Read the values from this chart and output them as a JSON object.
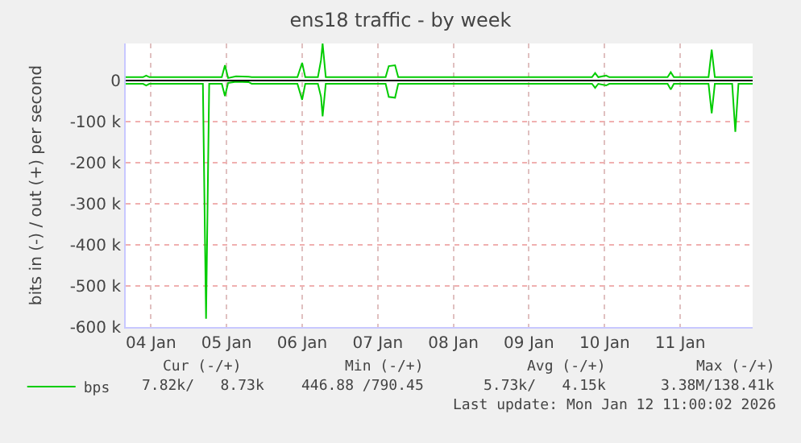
{
  "chart_data": {
    "type": "line",
    "title": "ens18 traffic - by week",
    "ylabel": "bits in (-) / out (+) per second",
    "x": [
      "2026-01-04T04:00",
      "2026-01-04T09:30",
      "2026-01-04T10:30",
      "2026-01-04T11:30",
      "2026-01-05T04:30",
      "2026-01-05T05:30",
      "2026-01-05T06:30",
      "2026-01-05T10:30",
      "2026-01-05T11:30",
      "2026-01-05T12:30",
      "2026-01-05T15:00",
      "2026-01-05T19:00",
      "2026-01-05T20:00",
      "2026-01-06T10:30",
      "2026-01-06T12:00",
      "2026-01-06T13:00",
      "2026-01-06T17:00",
      "2026-01-06T18:00",
      "2026-01-06T18:30",
      "2026-01-06T19:30",
      "2026-01-07T14:30",
      "2026-01-07T15:30",
      "2026-01-07T17:30",
      "2026-01-07T18:30",
      "2026-01-08T08:00",
      "2026-01-09T12:00",
      "2026-01-10T08:00",
      "2026-01-10T09:00",
      "2026-01-10T10:00",
      "2026-01-10T12:30",
      "2026-01-10T13:30",
      "2026-01-11T08:00",
      "2026-01-11T09:00",
      "2026-01-11T10:00",
      "2026-01-11T21:00",
      "2026-01-11T22:00",
      "2026-01-11T23:00",
      "2026-01-12T04:30",
      "2026-01-12T05:30",
      "2026-01-12T06:30",
      "2026-01-12T11:00"
    ],
    "series": [
      {
        "name": "bps",
        "color": "#00cc00",
        "values": [
          8000,
          8000,
          12000,
          8000,
          8000,
          8000,
          8000,
          8000,
          37000,
          6000,
          10000,
          9000,
          8000,
          8000,
          43000,
          8000,
          8000,
          50000,
          90000,
          8000,
          8000,
          35000,
          37000,
          8000,
          8000,
          8000,
          8000,
          18000,
          8000,
          12000,
          8000,
          8000,
          20000,
          8000,
          8000,
          75000,
          8000,
          8000,
          8000,
          8000,
          8000
        ]
      },
      {
        "color": "#00cc00",
        "values": [
          -8000,
          -8000,
          -12000,
          -8000,
          -8000,
          -580000,
          -8000,
          -8000,
          -38000,
          -6000,
          -3000,
          -4000,
          -8000,
          -8000,
          -47000,
          -8000,
          -8000,
          -40000,
          -87000,
          -8000,
          -8000,
          -40000,
          -42000,
          -8000,
          -8000,
          -8000,
          -8000,
          -18000,
          -8000,
          -12000,
          -8000,
          -8000,
          -22000,
          -8000,
          -8000,
          -80000,
          -8000,
          -8000,
          -125000,
          -8000,
          -8000
        ]
      }
    ],
    "xlim": [
      "2026-01-04T04:00",
      "2026-01-12T11:00"
    ],
    "xticks": [
      {
        "value": "2026-01-04T12:00",
        "label": "04 Jan"
      },
      {
        "value": "2026-01-05T12:00",
        "label": "05 Jan"
      },
      {
        "value": "2026-01-06T12:00",
        "label": "06 Jan"
      },
      {
        "value": "2026-01-07T12:00",
        "label": "07 Jan"
      },
      {
        "value": "2026-01-08T12:00",
        "label": "08 Jan"
      },
      {
        "value": "2026-01-09T12:00",
        "label": "09 Jan"
      },
      {
        "value": "2026-01-10T12:00",
        "label": "10 Jan"
      },
      {
        "value": "2026-01-11T12:00",
        "label": "11 Jan"
      }
    ],
    "ylim": [
      -600000,
      90000
    ],
    "yticks": [
      {
        "value": 0,
        "label": "0"
      },
      {
        "value": -100000,
        "label": "-100 k"
      },
      {
        "value": -200000,
        "label": "-200 k"
      },
      {
        "value": -300000,
        "label": "-300 k"
      },
      {
        "value": -400000,
        "label": "-400 k"
      },
      {
        "value": -500000,
        "label": "-500 k"
      },
      {
        "value": -600000,
        "label": "-600 k"
      }
    ],
    "ref_lines": [
      {
        "axis": "y",
        "value": 0,
        "color": "#000000"
      }
    ],
    "grid": true,
    "legend": "bottom",
    "marker": "none",
    "line_style": "solid",
    "annotations": [
      "Cur (-/+)",
      "Min (-/+)",
      "Avg (-/+)",
      "Max (-/+)",
      "7.82k/   8.73k",
      "446.88 /790.45",
      "5.73k/   4.15k",
      "3.38M/138.41k",
      "Last update: Mon Jan 12 11:00:02 2026"
    ]
  }
}
